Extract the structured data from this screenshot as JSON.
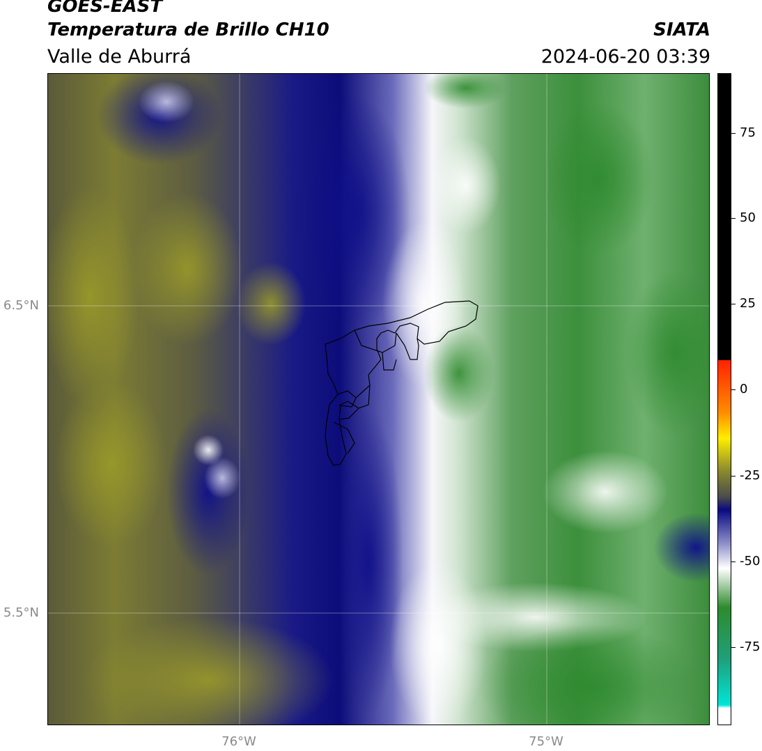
{
  "header": {
    "title_line1": "GOES-EAST",
    "title_line2": "Temperatura de Brillo CH10",
    "title_line3": "Valle de Aburrá",
    "organization": "SIATA",
    "timestamp": "2024-06-20 03:39"
  },
  "map": {
    "lat_ticks": [
      "6.5°N",
      "5.5°N"
    ],
    "lon_ticks": [
      "76°W",
      "75°W"
    ],
    "overlay": "Valle de Aburrá municipal boundaries"
  },
  "colorbar": {
    "tick_labels": [
      "75",
      "50",
      "25",
      "0",
      "-25",
      "-50",
      "-75"
    ],
    "colors": {
      "top": "#000000",
      "red": "#ff2200",
      "orange": "#ff8c00",
      "yellow": "#ffee00",
      "olive": "#8a8a2e",
      "gray": "#4c4c4c",
      "navy": "#0a0a80",
      "periwinkle": "#8a8ac8",
      "white": "#ffffff",
      "green": "#2e8b2e",
      "seagreen": "#1fa07a",
      "cyan": "#00e5d8"
    }
  }
}
